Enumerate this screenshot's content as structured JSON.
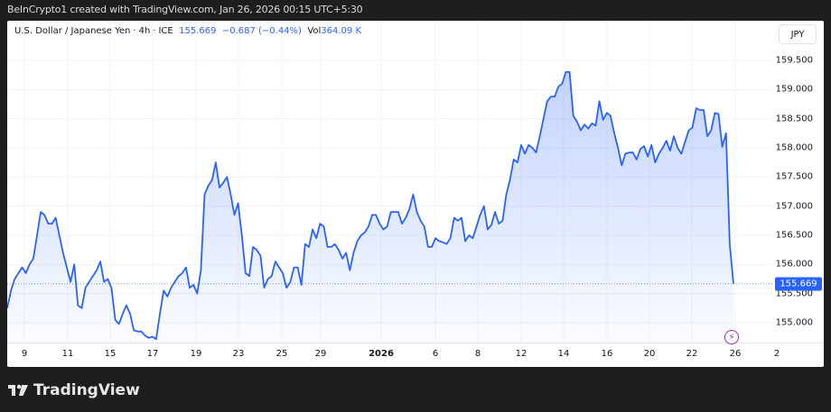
{
  "header": {
    "attribution": "BeInCrypto1 created with TradingView.com, Jan 26, 2026 00:15 UTC+5:30"
  },
  "legend": {
    "symbol": "U.S. Dollar / Japanese Yen",
    "interval": "4h",
    "exchange": "ICE",
    "price": "155.669",
    "change": "−0.687 (−0.44%)",
    "vol_label": "Vol",
    "vol_value": "364.09 K"
  },
  "currency_button": "JPY",
  "last_price_tag": "155.669",
  "footer": {
    "brand": "TradingView"
  },
  "colors": {
    "line": "#2962ff",
    "accent": "#2962ff",
    "event": "#9c27b0",
    "background": "#1e1e1e"
  },
  "event_icon": "lightning-bolt-icon",
  "chart_data": {
    "type": "area",
    "title": "U.S. Dollar / Japanese Yen · 4h · ICE",
    "xlabel": "",
    "ylabel": "JPY",
    "ylim": [
      154.58,
      160.45
    ],
    "grid": true,
    "legend_position": "top-left",
    "y_ticks": [
      "159.500",
      "159.000",
      "158.500",
      "158.000",
      "157.500",
      "157.000",
      "156.500",
      "156.000",
      "155.500",
      "155.000"
    ],
    "x_ticks": [
      "9",
      "11",
      "15",
      "17",
      "19",
      "23",
      "25",
      "29",
      "2026",
      "6",
      "8",
      "12",
      "14",
      "16",
      "20",
      "22",
      "26",
      "2"
    ],
    "last_value": 155.669,
    "series": [
      {
        "name": "USDJPY",
        "values": [
          155.25,
          155.55,
          155.75,
          155.85,
          155.95,
          155.85,
          156.0,
          156.1,
          156.5,
          156.9,
          156.85,
          156.7,
          156.7,
          156.8,
          156.5,
          156.2,
          155.95,
          155.7,
          156.0,
          155.3,
          155.25,
          155.6,
          155.7,
          155.8,
          155.9,
          156.05,
          155.7,
          155.75,
          155.6,
          155.05,
          154.98,
          155.15,
          155.3,
          155.15,
          154.87,
          154.85,
          154.85,
          154.78,
          154.74,
          154.76,
          154.72,
          155.15,
          155.55,
          155.45,
          155.6,
          155.7,
          155.8,
          155.85,
          155.95,
          155.6,
          155.65,
          155.5,
          155.9,
          157.2,
          157.35,
          157.45,
          157.75,
          157.32,
          157.4,
          157.5,
          157.2,
          156.85,
          157.05,
          156.5,
          155.85,
          155.8,
          156.3,
          156.25,
          156.15,
          155.6,
          155.75,
          155.8,
          156.05,
          155.95,
          155.85,
          155.6,
          155.7,
          155.95,
          155.95,
          155.65,
          156.35,
          156.3,
          156.6,
          156.45,
          156.7,
          156.65,
          156.3,
          156.3,
          156.35,
          156.25,
          156.1,
          156.2,
          155.9,
          156.2,
          156.4,
          156.5,
          156.55,
          156.65,
          156.85,
          156.85,
          156.7,
          156.6,
          156.65,
          156.9,
          156.9,
          156.9,
          156.7,
          156.8,
          156.95,
          157.2,
          156.9,
          156.75,
          156.65,
          156.3,
          156.3,
          156.45,
          156.4,
          156.38,
          156.35,
          156.45,
          156.8,
          156.75,
          156.8,
          156.4,
          156.5,
          156.45,
          156.65,
          156.85,
          157.0,
          156.6,
          156.68,
          156.9,
          156.7,
          156.75,
          157.2,
          157.45,
          157.8,
          157.75,
          158.05,
          157.9,
          158.05,
          158.0,
          157.92,
          158.2,
          158.5,
          158.8,
          158.88,
          158.88,
          159.05,
          159.1,
          159.3,
          159.3,
          158.55,
          158.45,
          158.3,
          158.4,
          158.33,
          158.42,
          158.38,
          158.8,
          158.48,
          158.6,
          158.55,
          158.25,
          158.0,
          157.7,
          157.9,
          157.92,
          157.92,
          157.8,
          157.98,
          158.03,
          157.85,
          158.05,
          157.75,
          157.9,
          158.0,
          158.12,
          157.95,
          158.2,
          158.0,
          157.9,
          158.1,
          158.3,
          158.35,
          158.68,
          158.65,
          158.65,
          158.2,
          158.3,
          158.6,
          158.58,
          158.02,
          158.25,
          156.35,
          155.669
        ]
      }
    ]
  }
}
